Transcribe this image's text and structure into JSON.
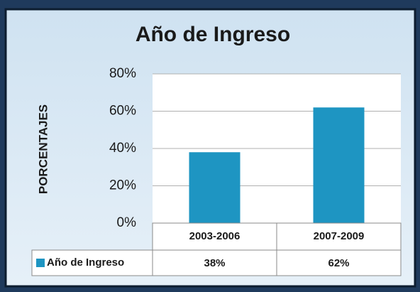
{
  "chart_data": {
    "type": "bar",
    "title": "Año de Ingreso",
    "y_label": "PORCENTAJES",
    "categories": [
      "2003-2006",
      "2007-2009"
    ],
    "series": [
      {
        "name": "Año de Ingreso",
        "color": "#1e95c2",
        "values": [
          38,
          62
        ],
        "value_labels": [
          "38%",
          "62%"
        ]
      }
    ],
    "ylim": [
      0,
      80
    ],
    "yticks": [
      {
        "value": 0,
        "label": "0%"
      },
      {
        "value": 20,
        "label": "20%"
      },
      {
        "value": 40,
        "label": "40%"
      },
      {
        "value": 60,
        "label": "60%"
      },
      {
        "value": 80,
        "label": "80%"
      }
    ],
    "grid": true,
    "data_table": true
  }
}
